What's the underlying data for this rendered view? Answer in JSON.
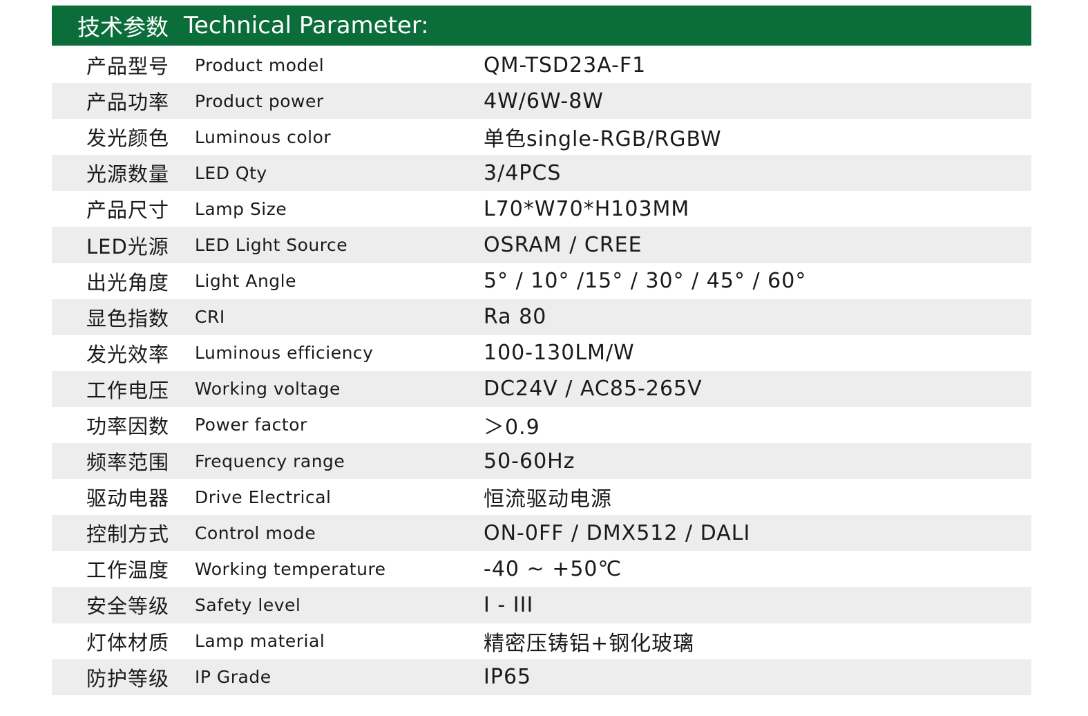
{
  "header": {
    "title_cn": "技术参数",
    "title_en": "Technical Parameter:",
    "color": "#0b6e3a"
  },
  "rows": [
    {
      "cn": "产品型号",
      "en": "Product model",
      "value": "QM-TSD23A-F1"
    },
    {
      "cn": "产品功率",
      "en": "Product power",
      "value": "4W/6W-8W"
    },
    {
      "cn": "发光颜色",
      "en": "Luminous color",
      "value": "单色single-RGB/RGBW"
    },
    {
      "cn": "光源数量",
      "en": "LED Qty",
      "value": "3/4PCS"
    },
    {
      "cn": "产品尺寸",
      "en": "Lamp Size",
      "value": "L70*W70*H103MM"
    },
    {
      "cn": "LED光源",
      "en": "LED Light Source",
      "value": "OSRAM / CREE"
    },
    {
      "cn": "出光角度",
      "en": "Light Angle",
      "value": "5° / 10° /15° / 30° / 45° / 60°"
    },
    {
      "cn": "显色指数",
      "en": "CRI",
      "value": "Ra 80"
    },
    {
      "cn": "发光效率",
      "en": "Luminous efficiency",
      "value": "100-130LM/W"
    },
    {
      "cn": "工作电压",
      "en": "Working voltage",
      "value": "DC24V / AC85-265V"
    },
    {
      "cn": "功率因数",
      "en": "Power factor",
      "value": "＞0.9"
    },
    {
      "cn": "频率范围",
      "en": "Frequency range",
      "value": "50-60Hz"
    },
    {
      "cn": "驱动电器",
      "en": "Drive Electrical",
      "value": "恒流驱动电源"
    },
    {
      "cn": "控制方式",
      "en": "Control mode",
      "value": "ON-0FF / DMX512 / DALI"
    },
    {
      "cn": "工作温度",
      "en": "Working temperature",
      "value": "-40 ~ +50℃"
    },
    {
      "cn": "安全等级",
      "en": "Safety level",
      "value": "I - III"
    },
    {
      "cn": "灯体材质",
      "en": "Lamp material",
      "value": "精密压铸铝+钢化玻璃"
    },
    {
      "cn": "防护等级",
      "en": "IP Grade",
      "value": "IP65"
    }
  ]
}
